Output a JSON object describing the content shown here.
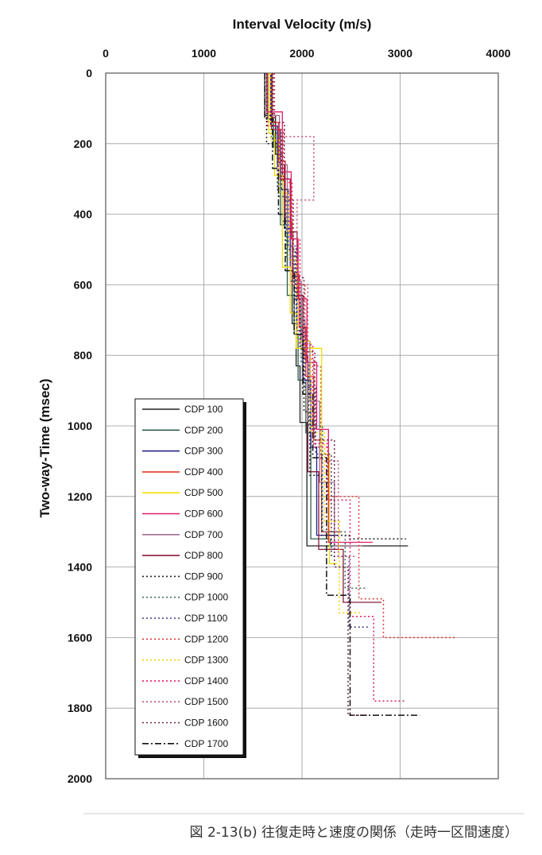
{
  "chart_data": {
    "type": "line",
    "title": "Interval Velocity (m/s)",
    "xlabel": "Interval Velocity (m/s)",
    "ylabel": "Two-way-Time (msec)",
    "xlim": [
      0,
      4000
    ],
    "ylim": [
      0,
      2000
    ],
    "y_inverted": true,
    "x_axis_position": "top",
    "xticks": [
      "0",
      "1000",
      "2000",
      "3000",
      "4000"
    ],
    "yticks": [
      "0",
      "200",
      "400",
      "600",
      "800",
      "1000",
      "1200",
      "1400",
      "1600",
      "1800",
      "2000"
    ],
    "grid": true,
    "legend_position": "bottom-left",
    "caption": "図 2-13(b)  往復走時と速度の関係（走時一区間速度）",
    "series": [
      {
        "name": "CDP 100",
        "color": "#222222",
        "style": "solid",
        "x": [
          1620,
          1730,
          1800,
          1850,
          1900,
          1940,
          1980,
          2050,
          2350,
          3080
        ],
        "y": [
          0,
          120,
          230,
          420,
          560,
          710,
          830,
          990,
          1340,
          1340
        ]
      },
      {
        "name": "CDP 200",
        "color": "#2e5e4e",
        "style": "solid",
        "x": [
          1650,
          1710,
          1780,
          1850,
          1920,
          1960,
          2040,
          2090,
          2290,
          2460
        ],
        "y": [
          0,
          130,
          210,
          430,
          630,
          740,
          870,
          1020,
          1320,
          1340
        ]
      },
      {
        "name": "CDP 300",
        "color": "#22228a",
        "style": "solid",
        "x": [
          1680,
          1750,
          1820,
          1880,
          1950,
          2010,
          2090,
          2150,
          2360
        ],
        "y": [
          0,
          150,
          260,
          440,
          590,
          730,
          870,
          1060,
          1310
        ]
      },
      {
        "name": "CDP 400",
        "color": "#e03a2a",
        "style": "solid",
        "x": [
          1700,
          1760,
          1830,
          1900,
          1970,
          2040,
          2120,
          2200,
          2400
        ],
        "y": [
          0,
          140,
          250,
          420,
          570,
          720,
          860,
          1040,
          1300
        ]
      },
      {
        "name": "CDP 500",
        "color": "#f0e000",
        "style": "solid",
        "x": [
          1660,
          1720,
          1800,
          1880,
          1940,
          2200,
          2280,
          2360
        ],
        "y": [
          0,
          170,
          290,
          550,
          680,
          780,
          1080,
          1390
        ]
      },
      {
        "name": "CDP 600",
        "color": "#e01a6a",
        "style": "solid",
        "x": [
          1640,
          1800,
          1890,
          1960,
          2050,
          2150,
          2270,
          2390,
          2720
        ],
        "y": [
          0,
          110,
          280,
          470,
          640,
          820,
          1010,
          1330,
          1330
        ]
      },
      {
        "name": "CDP 700",
        "color": "#a07090",
        "style": "solid",
        "x": [
          1700,
          1770,
          1850,
          1910,
          1990,
          2080,
          2180,
          2330,
          2620
        ],
        "y": [
          0,
          120,
          260,
          450,
          590,
          760,
          930,
          1160,
          1340
        ]
      },
      {
        "name": "CDP 800",
        "color": "#8a1a3a",
        "style": "solid",
        "x": [
          1690,
          1780,
          1880,
          1950,
          2010,
          2060,
          2170,
          2420,
          2810
        ],
        "y": [
          0,
          160,
          300,
          450,
          630,
          800,
          1130,
          1350,
          1500
        ]
      },
      {
        "name": "CDP 900",
        "color": "#222222",
        "style": "dot",
        "x": [
          1640,
          1750,
          1860,
          1930,
          1980,
          2020,
          2080,
          2200,
          2480,
          3060
        ],
        "y": [
          0,
          200,
          330,
          500,
          640,
          780,
          960,
          1140,
          1310,
          1320
        ]
      },
      {
        "name": "CDP 1000",
        "color": "#3e6e5e",
        "style": "dot",
        "x": [
          1680,
          1760,
          1840,
          1920,
          1990,
          2070,
          2210,
          2440,
          2650
        ],
        "y": [
          0,
          180,
          350,
          520,
          660,
          820,
          1000,
          1300,
          1460
        ]
      },
      {
        "name": "CDP 1100",
        "color": "#3a3a8a",
        "style": "dot",
        "x": [
          1700,
          1790,
          1860,
          1940,
          2030,
          2140,
          2300,
          2480,
          2680
        ],
        "y": [
          0,
          170,
          330,
          490,
          700,
          890,
          1080,
          1370,
          1570
        ]
      },
      {
        "name": "CDP 1200",
        "color": "#e03a3a",
        "style": "dot",
        "x": [
          1720,
          1810,
          1900,
          2030,
          2120,
          2270,
          2580,
          2830,
          3580
        ],
        "y": [
          0,
          160,
          310,
          600,
          810,
          1060,
          1200,
          1490,
          1600
        ]
      },
      {
        "name": "CDP 1300",
        "color": "#f0d000",
        "style": "dot",
        "x": [
          1680,
          1770,
          1860,
          1950,
          2090,
          2230,
          2380,
          2600
        ],
        "y": [
          0,
          190,
          340,
          530,
          760,
          1020,
          1270,
          1530
        ]
      },
      {
        "name": "CDP 1400",
        "color": "#e01a6a",
        "style": "dot",
        "x": [
          1650,
          1760,
          1880,
          1980,
          2110,
          2260,
          2490,
          2730,
          3060
        ],
        "y": [
          0,
          150,
          300,
          470,
          770,
          1050,
          1210,
          1540,
          1780
        ]
      },
      {
        "name": "CDP 1500",
        "color": "#c05070",
        "style": "dot",
        "x": [
          1710,
          1820,
          2120,
          1950,
          2060,
          2190,
          2370,
          2560
        ],
        "y": [
          0,
          160,
          180,
          360,
          600,
          830,
          1100,
          1370
        ]
      },
      {
        "name": "CDP 1600",
        "color": "#702040",
        "style": "dot",
        "x": [
          1700,
          1820,
          1910,
          2020,
          2130,
          2330,
          2470,
          2680
        ],
        "y": [
          0,
          140,
          360,
          580,
          790,
          1040,
          1400,
          1820
        ]
      },
      {
        "name": "CDP 1700",
        "color": "#111111",
        "style": "dashdot",
        "x": [
          1620,
          1700,
          1760,
          1830,
          1920,
          2010,
          2110,
          2250,
          2490,
          3200
        ],
        "y": [
          0,
          130,
          270,
          400,
          560,
          740,
          910,
          1090,
          1480,
          1820
        ]
      }
    ]
  }
}
